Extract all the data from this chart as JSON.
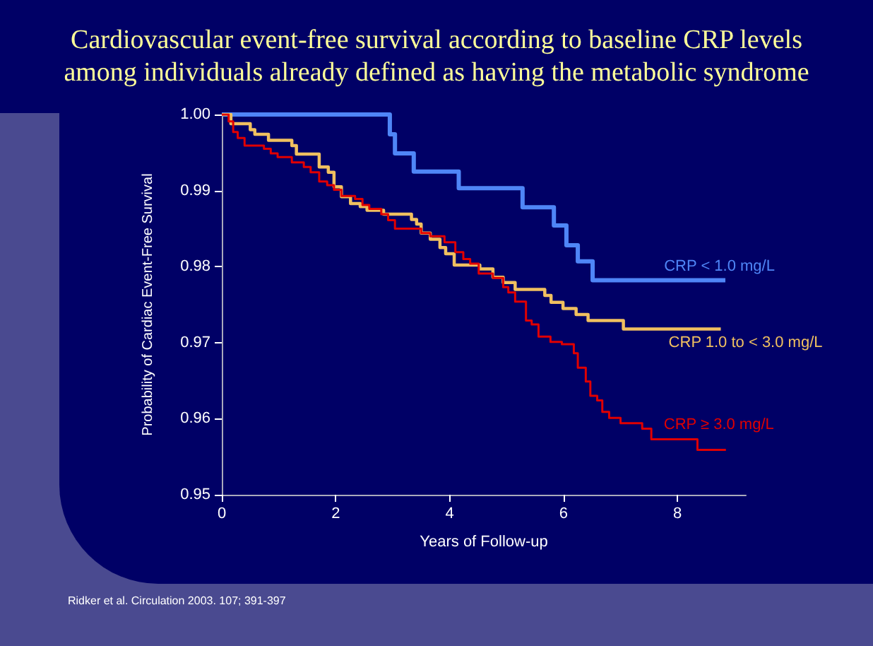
{
  "chart_data": {
    "type": "step",
    "title": "Cardiovascular event-free survival according to baseline CRP levels\namong individuals already defined as having the metabolic syndrome",
    "xlabel": "Years of Follow-up",
    "ylabel": "Probability of Cardiac Event-Free Survival",
    "annotations": [
      "Ridker et al. Circulation 2003. 107; 391-397"
    ],
    "xlim": [
      0,
      9.2
    ],
    "xticks": [
      0,
      2,
      4,
      6,
      8
    ],
    "ylim": [
      0.95,
      1.0
    ],
    "yticks": [
      0.95,
      0.96,
      0.97,
      0.98,
      0.99,
      {
        "value": 1.0,
        "label": "1.00"
      }
    ],
    "grid": false,
    "legend": false,
    "marker": "none",
    "line_style": "solid",
    "series": [
      {
        "name": "CRP < 1.0 mg/L",
        "color": "#4f86f7",
        "x": [
          0,
          2.95,
          3.04,
          3.37,
          4.16,
          5.28,
          5.83,
          6.05,
          6.25,
          6.51,
          8.84
        ],
        "values": [
          1.0,
          0.9974,
          0.9949,
          0.9925,
          0.9903,
          0.9878,
          0.9854,
          0.9828,
          0.9807,
          0.9782,
          0.9782
        ]
      },
      {
        "name": "CRP 1.0 to < 3.0 mg/L",
        "color": "#f0c060",
        "x": [
          0,
          0.16,
          0.5,
          0.58,
          0.82,
          1.23,
          1.31,
          1.71,
          1.87,
          1.97,
          2.1,
          2.26,
          2.43,
          2.55,
          2.84,
          3.33,
          3.42,
          3.5,
          3.66,
          3.83,
          3.93,
          4.08,
          4.53,
          4.76,
          4.94,
          5.15,
          5.67,
          5.78,
          5.99,
          6.22,
          6.43,
          7.05,
          8.76
        ],
        "values": [
          1.0,
          0.9988,
          0.998,
          0.9974,
          0.9966,
          0.9959,
          0.9948,
          0.9931,
          0.9924,
          0.9905,
          0.9892,
          0.9883,
          0.9879,
          0.9874,
          0.9869,
          0.9862,
          0.9856,
          0.9844,
          0.9836,
          0.9825,
          0.9817,
          0.9802,
          0.9797,
          0.9786,
          0.9779,
          0.977,
          0.9762,
          0.9753,
          0.9745,
          0.9737,
          0.9729,
          0.9718,
          0.9718
        ]
      },
      {
        "name": "CRP ≥ 3.0 mg/L",
        "color": "#e00000",
        "x": [
          0,
          0.12,
          0.2,
          0.28,
          0.4,
          0.74,
          0.86,
          0.98,
          1.23,
          1.44,
          1.56,
          1.71,
          1.85,
          1.97,
          2.1,
          2.34,
          2.47,
          2.59,
          2.8,
          2.92,
          3.04,
          3.5,
          3.66,
          3.91,
          4.1,
          4.24,
          4.36,
          4.51,
          4.76,
          4.94,
          5.03,
          5.15,
          5.34,
          5.44,
          5.56,
          5.77,
          5.97,
          6.18,
          6.25,
          6.39,
          6.47,
          6.59,
          6.68,
          6.8,
          7.0,
          7.38,
          7.54,
          8.35,
          8.85
        ],
        "values": [
          1.0,
          0.9991,
          0.9977,
          0.9969,
          0.9959,
          0.9955,
          0.9949,
          0.9944,
          0.9937,
          0.9931,
          0.9924,
          0.9912,
          0.9907,
          0.9901,
          0.9893,
          0.9889,
          0.9881,
          0.9876,
          0.9869,
          0.9861,
          0.985,
          0.9844,
          0.984,
          0.9832,
          0.9819,
          0.981,
          0.9804,
          0.9791,
          0.9785,
          0.9773,
          0.9766,
          0.9754,
          0.9729,
          0.9724,
          0.9708,
          0.9701,
          0.9698,
          0.9686,
          0.9667,
          0.9649,
          0.963,
          0.9624,
          0.9609,
          0.9601,
          0.9594,
          0.9587,
          0.9573,
          0.9559,
          0.9559
        ]
      }
    ]
  }
}
